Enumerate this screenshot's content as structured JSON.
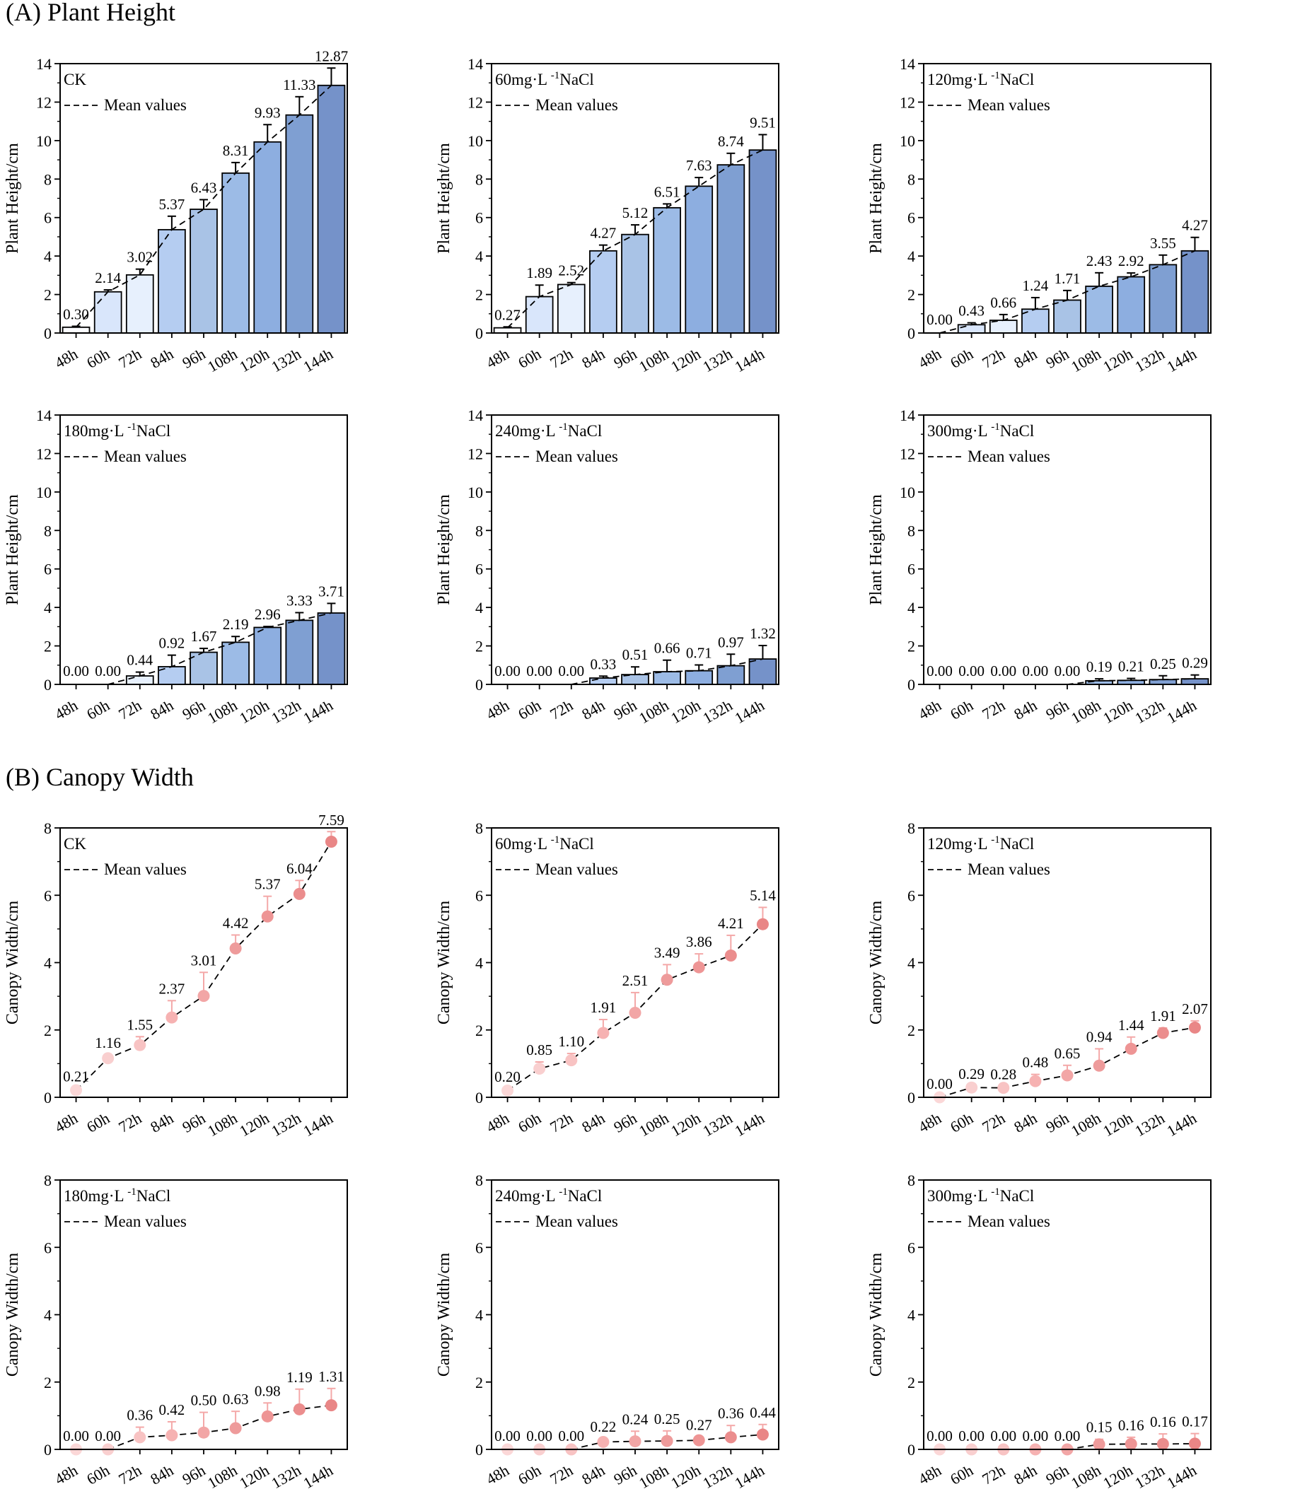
{
  "panel_a_title": "(A) Plant Height",
  "panel_b_title": "(B) Canopy Width",
  "colors": {
    "bars": [
      "#fbfcff",
      "#d9e6fb",
      "#e7f0fd",
      "#b5cdf1",
      "#a9c3e6",
      "#9cbbe6",
      "#8daee0",
      "#7f9fd2",
      "#7592c9"
    ],
    "dots": [
      "#fbd7d7",
      "#f9cfcf",
      "#f8c3c3",
      "#f6b2b2",
      "#f2a6a6",
      "#ee9b9b",
      "#ee9595",
      "#eb8d8d",
      "#e98686"
    ],
    "error_bar_points": "#f4a8a8"
  },
  "chart_data": [
    {
      "type": "bar",
      "group": "A",
      "label": "CK",
      "legend": "Mean values",
      "ylabel": "Plant Height/cm",
      "ylim": [
        0,
        14
      ],
      "yticks": [
        0,
        2,
        4,
        6,
        8,
        10,
        12,
        14
      ],
      "categories": [
        "48h",
        "60h",
        "72h",
        "84h",
        "96h",
        "108h",
        "120h",
        "132h",
        "144h"
      ],
      "values": [
        0.3,
        2.14,
        3.02,
        5.37,
        6.43,
        8.31,
        9.93,
        11.33,
        12.87
      ],
      "errors": [
        0.05,
        0.1,
        0.3,
        0.7,
        0.5,
        0.55,
        0.9,
        0.95,
        0.9
      ],
      "labels": [
        "0.30",
        "2.14",
        "3.02",
        "5.37",
        "6.43",
        "8.31",
        "9.93",
        "11.33",
        "12.87"
      ]
    },
    {
      "type": "bar",
      "group": "A",
      "label": "60mg·L⁻¹NaCl",
      "legend": "Mean values",
      "ylabel": "Plant Height/cm",
      "ylim": [
        0,
        14
      ],
      "yticks": [
        0,
        2,
        4,
        6,
        8,
        10,
        12,
        14
      ],
      "categories": [
        "48h",
        "60h",
        "72h",
        "84h",
        "96h",
        "108h",
        "120h",
        "132h",
        "144h"
      ],
      "values": [
        0.27,
        1.89,
        2.52,
        4.27,
        5.12,
        6.51,
        7.63,
        8.74,
        9.51
      ],
      "errors": [
        0.05,
        0.6,
        0.1,
        0.3,
        0.5,
        0.2,
        0.45,
        0.6,
        0.8
      ],
      "labels": [
        "0.27",
        "1.89",
        "2.52",
        "4.27",
        "5.12",
        "6.51",
        "7.63",
        "8.74",
        "9.51"
      ]
    },
    {
      "type": "bar",
      "group": "A",
      "label": "120mg·L⁻¹NaCl",
      "legend": "Mean values",
      "ylabel": "Plant Height/cm",
      "ylim": [
        0,
        14
      ],
      "yticks": [
        0,
        2,
        4,
        6,
        8,
        10,
        12,
        14
      ],
      "categories": [
        "48h",
        "60h",
        "72h",
        "84h",
        "96h",
        "108h",
        "120h",
        "132h",
        "144h"
      ],
      "values": [
        0.0,
        0.43,
        0.66,
        1.24,
        1.71,
        2.43,
        2.92,
        3.55,
        4.27
      ],
      "errors": [
        0,
        0.1,
        0.3,
        0.6,
        0.5,
        0.7,
        0.2,
        0.5,
        0.7
      ],
      "labels": [
        "0.00",
        "0.43",
        "0.66",
        "1.24",
        "1.71",
        "2.43",
        "2.92",
        "3.55",
        "4.27"
      ]
    },
    {
      "type": "bar",
      "group": "A",
      "label": "180mg·L⁻¹NaCl",
      "legend": "Mean values",
      "ylabel": "Plant Height/cm",
      "ylim": [
        0,
        14
      ],
      "yticks": [
        0,
        2,
        4,
        6,
        8,
        10,
        12,
        14
      ],
      "categories": [
        "48h",
        "60h",
        "72h",
        "84h",
        "96h",
        "108h",
        "120h",
        "132h",
        "144h"
      ],
      "values": [
        0.0,
        0.0,
        0.44,
        0.92,
        1.67,
        2.19,
        2.96,
        3.33,
        3.71
      ],
      "errors": [
        0,
        0,
        0.2,
        0.6,
        0.2,
        0.3,
        0.05,
        0.4,
        0.5
      ],
      "labels": [
        "0.00",
        "0.00",
        "0.44",
        "0.92",
        "1.67",
        "2.19",
        "2.96",
        "3.33",
        "3.71"
      ]
    },
    {
      "type": "bar",
      "group": "A",
      "label": "240mg·L⁻¹NaCl",
      "legend": "Mean values",
      "ylabel": "Plant Height/cm",
      "ylim": [
        0,
        14
      ],
      "yticks": [
        0,
        2,
        4,
        6,
        8,
        10,
        12,
        14
      ],
      "categories": [
        "48h",
        "60h",
        "72h",
        "84h",
        "96h",
        "108h",
        "120h",
        "132h",
        "144h"
      ],
      "values": [
        0.0,
        0.0,
        0.0,
        0.33,
        0.51,
        0.66,
        0.71,
        0.97,
        1.32
      ],
      "errors": [
        0,
        0,
        0,
        0.1,
        0.4,
        0.6,
        0.3,
        0.6,
        0.7
      ],
      "labels": [
        "0.00",
        "0.00",
        "0.00",
        "0.33",
        "0.51",
        "0.66",
        "0.71",
        "0.97",
        "1.32"
      ]
    },
    {
      "type": "bar",
      "group": "A",
      "label": "300mg·L⁻¹NaCl",
      "legend": "Mean values",
      "ylabel": "Plant Height/cm",
      "ylim": [
        0,
        14
      ],
      "yticks": [
        0,
        2,
        4,
        6,
        8,
        10,
        12,
        14
      ],
      "categories": [
        "48h",
        "60h",
        "72h",
        "84h",
        "96h",
        "108h",
        "120h",
        "132h",
        "144h"
      ],
      "values": [
        0.0,
        0.0,
        0.0,
        0.0,
        0.0,
        0.19,
        0.21,
        0.25,
        0.29
      ],
      "errors": [
        0,
        0,
        0,
        0,
        0,
        0.1,
        0.1,
        0.2,
        0.2
      ],
      "labels": [
        "0.00",
        "0.00",
        "0.00",
        "0.00",
        "0.00",
        "0.19",
        "0.21",
        "0.25",
        "0.29"
      ]
    },
    {
      "type": "scatter",
      "group": "B",
      "label": "CK",
      "legend": "Mean values",
      "ylabel": "Canopy Width/cm",
      "ylim": [
        0,
        8
      ],
      "yticks": [
        0,
        2,
        4,
        6,
        8
      ],
      "categories": [
        "48h",
        "60h",
        "72h",
        "84h",
        "96h",
        "108h",
        "120h",
        "132h",
        "144h"
      ],
      "values": [
        0.21,
        1.16,
        1.55,
        2.37,
        3.01,
        4.42,
        5.37,
        6.04,
        7.59
      ],
      "errors": [
        0.05,
        0.1,
        0.25,
        0.5,
        0.7,
        0.4,
        0.6,
        0.4,
        0.3
      ],
      "labels": [
        "0.21",
        "1.16",
        "1.55",
        "2.37",
        "3.01",
        "4.42",
        "5.37",
        "6.04",
        "7.59"
      ]
    },
    {
      "type": "scatter",
      "group": "B",
      "label": "60mg·L⁻¹NaCl",
      "legend": "Mean values",
      "ylabel": "Canopy Width/cm",
      "ylim": [
        0,
        8
      ],
      "yticks": [
        0,
        2,
        4,
        6,
        8
      ],
      "categories": [
        "48h",
        "60h",
        "72h",
        "84h",
        "96h",
        "108h",
        "120h",
        "132h",
        "144h"
      ],
      "values": [
        0.2,
        0.85,
        1.1,
        1.91,
        2.51,
        3.49,
        3.86,
        4.21,
        5.14
      ],
      "errors": [
        0.05,
        0.2,
        0.2,
        0.4,
        0.6,
        0.45,
        0.4,
        0.6,
        0.5
      ],
      "labels": [
        "0.20",
        "0.85",
        "1.10",
        "1.91",
        "2.51",
        "3.49",
        "3.86",
        "4.21",
        "5.14"
      ]
    },
    {
      "type": "scatter",
      "group": "B",
      "label": "120mg·L⁻¹NaCl",
      "legend": "Mean values",
      "ylabel": "Canopy Width/cm",
      "ylim": [
        0,
        8
      ],
      "yticks": [
        0,
        2,
        4,
        6,
        8
      ],
      "categories": [
        "48h",
        "60h",
        "72h",
        "84h",
        "96h",
        "108h",
        "120h",
        "132h",
        "144h"
      ],
      "values": [
        0.0,
        0.29,
        0.28,
        0.48,
        0.65,
        0.94,
        1.44,
        1.91,
        2.07
      ],
      "errors": [
        0,
        0.05,
        0.05,
        0.2,
        0.3,
        0.5,
        0.35,
        0.15,
        0.2
      ],
      "labels": [
        "0.00",
        "0.29",
        "0.28",
        "0.48",
        "0.65",
        "0.94",
        "1.44",
        "1.91",
        "2.07"
      ]
    },
    {
      "type": "scatter",
      "group": "B",
      "label": "180mg·L⁻¹NaCl",
      "legend": "Mean values",
      "ylabel": "Canopy Width/cm",
      "ylim": [
        0,
        8
      ],
      "yticks": [
        0,
        2,
        4,
        6,
        8
      ],
      "categories": [
        "48h",
        "60h",
        "72h",
        "84h",
        "96h",
        "108h",
        "120h",
        "132h",
        "144h"
      ],
      "values": [
        0.0,
        0.0,
        0.36,
        0.42,
        0.5,
        0.63,
        0.98,
        1.19,
        1.31
      ],
      "errors": [
        0,
        0,
        0.3,
        0.4,
        0.6,
        0.5,
        0.4,
        0.6,
        0.5
      ],
      "labels": [
        "0.00",
        "0.00",
        "0.36",
        "0.42",
        "0.50",
        "0.63",
        "0.98",
        "1.19",
        "1.31"
      ]
    },
    {
      "type": "scatter",
      "group": "B",
      "label": "240mg·L⁻¹NaCl",
      "legend": "Mean values",
      "ylabel": "Canopy Width/cm",
      "ylim": [
        0,
        8
      ],
      "yticks": [
        0,
        2,
        4,
        6,
        8
      ],
      "categories": [
        "48h",
        "60h",
        "72h",
        "84h",
        "96h",
        "108h",
        "120h",
        "132h",
        "144h"
      ],
      "values": [
        0.0,
        0.0,
        0.0,
        0.22,
        0.24,
        0.25,
        0.27,
        0.36,
        0.44
      ],
      "errors": [
        0,
        0,
        0,
        0.1,
        0.3,
        0.3,
        0.1,
        0.35,
        0.3
      ],
      "labels": [
        "0.00",
        "0.00",
        "0.00",
        "0.22",
        "0.24",
        "0.25",
        "0.27",
        "0.36",
        "0.44"
      ]
    },
    {
      "type": "scatter",
      "group": "B",
      "label": "300mg·L⁻¹NaCl",
      "legend": "Mean values",
      "ylabel": "Canopy Width/cm",
      "ylim": [
        0,
        8
      ],
      "yticks": [
        0,
        2,
        4,
        6,
        8
      ],
      "categories": [
        "48h",
        "60h",
        "72h",
        "84h",
        "96h",
        "108h",
        "120h",
        "132h",
        "144h"
      ],
      "values": [
        0.0,
        0.0,
        0.0,
        0.0,
        0.0,
        0.15,
        0.16,
        0.16,
        0.17
      ],
      "errors": [
        0,
        0,
        0,
        0,
        0,
        0.15,
        0.2,
        0.3,
        0.3
      ],
      "labels": [
        "0.00",
        "0.00",
        "0.00",
        "0.00",
        "0.00",
        "0.15",
        "0.16",
        "0.16",
        "0.17"
      ]
    }
  ]
}
